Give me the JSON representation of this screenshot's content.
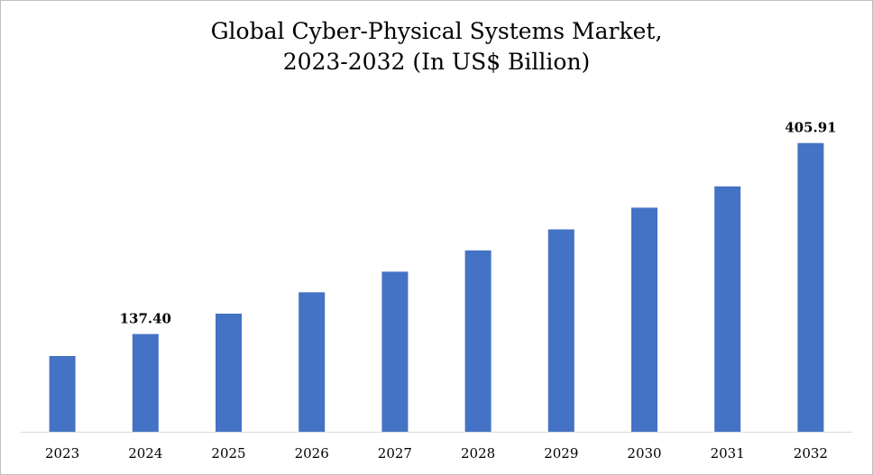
{
  "chart_data": {
    "type": "bar",
    "title_line1": "Global Cyber-Physical Systems Market,",
    "title_line2": "2023-2032 (In US$ Billion)",
    "categories": [
      "2023",
      "2024",
      "2025",
      "2026",
      "2027",
      "2028",
      "2029",
      "2030",
      "2031",
      "2032"
    ],
    "values": [
      106.5,
      137.4,
      166.0,
      196.0,
      225.0,
      255.0,
      284.5,
      315.0,
      345.0,
      405.91
    ],
    "data_labels": [
      "",
      "137.40",
      "",
      "",
      "",
      "",
      "",
      "",
      "",
      "405.91"
    ],
    "xlabel": "",
    "ylabel": "",
    "ylim": [
      0,
      460
    ],
    "grid": false,
    "legend": "none",
    "bar_color": "#4472C4",
    "axis_color": "#d9d9d9"
  }
}
